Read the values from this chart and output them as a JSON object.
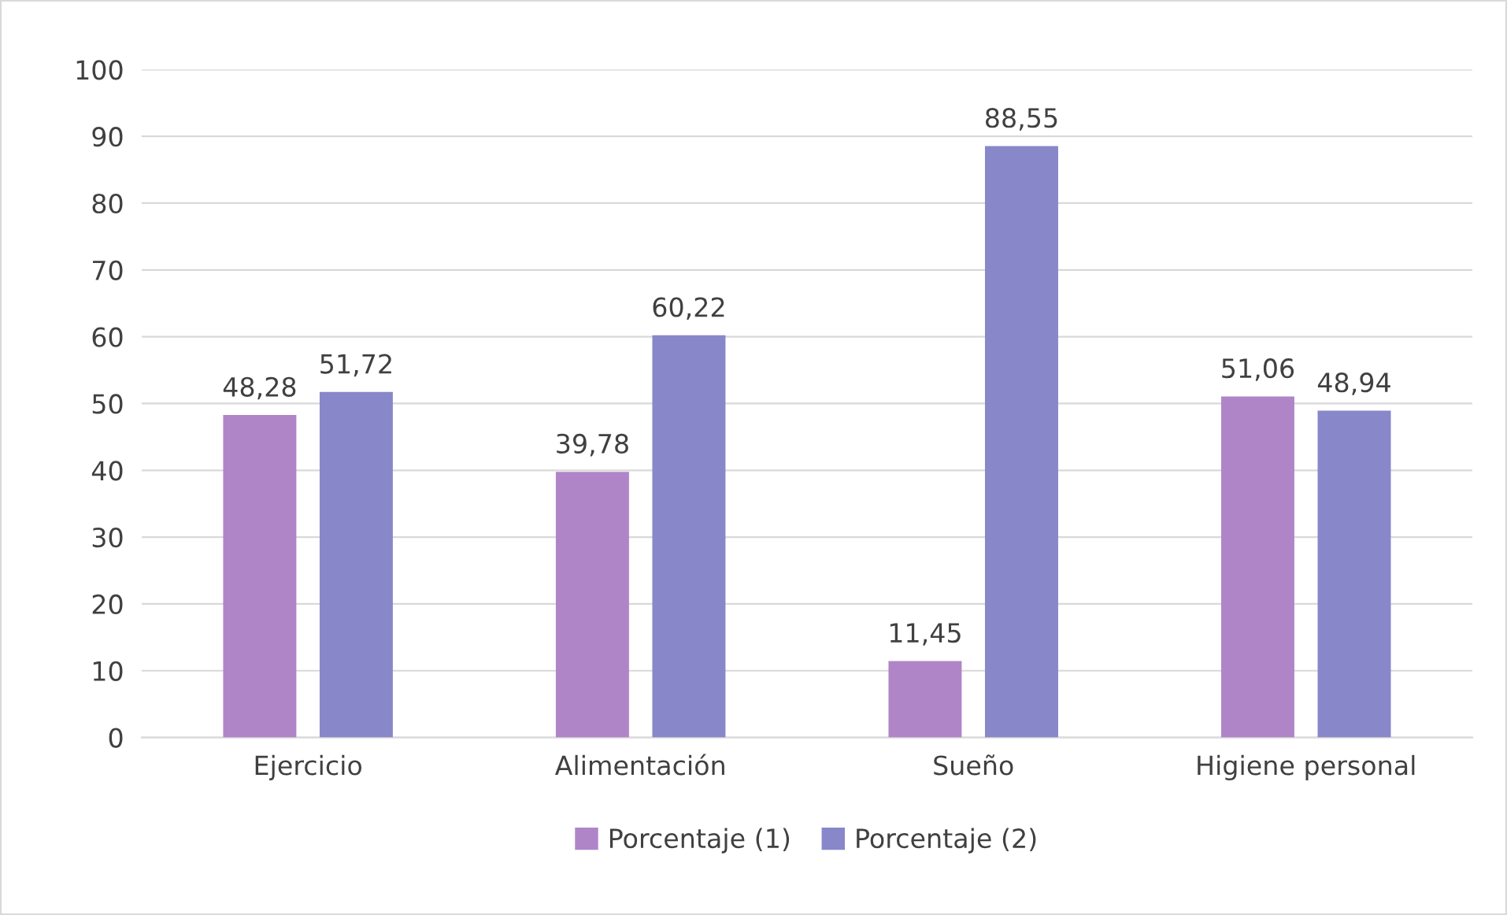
{
  "chart_data": {
    "type": "bar",
    "categories": [
      "Ejercicio",
      "Alimentación",
      "Sueño",
      "Higiene personal"
    ],
    "series": [
      {
        "name": "Porcentaje (1)",
        "color": "#b085c8",
        "values": [
          48.28,
          39.78,
          11.45,
          51.06
        ],
        "value_labels": [
          "48,28",
          "39,78",
          "11,45",
          "51,06"
        ]
      },
      {
        "name": "Porcentaje (2)",
        "color": "#8787c9",
        "values": [
          51.72,
          60.22,
          88.55,
          48.94
        ],
        "value_labels": [
          "51,72",
          "60,22",
          "88,55",
          "48,94"
        ]
      }
    ],
    "ylim": [
      0,
      100
    ],
    "yticks": [
      0,
      10,
      20,
      30,
      40,
      50,
      60,
      70,
      80,
      90,
      100
    ],
    "grid": "y",
    "legend": "bottom"
  }
}
